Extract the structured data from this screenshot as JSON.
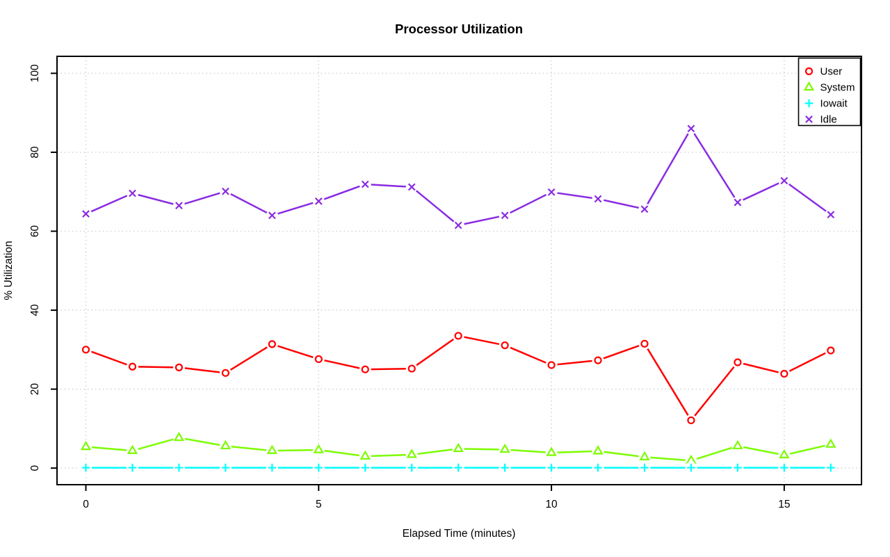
{
  "chart_data": {
    "type": "line",
    "title": "Processor Utilization",
    "xlabel": "Elapsed Time (minutes)",
    "ylabel": "% Utilization",
    "x": [
      0,
      1,
      2,
      3,
      4,
      5,
      6,
      7,
      8,
      9,
      10,
      11,
      12,
      13,
      14,
      15,
      16
    ],
    "series": [
      {
        "name": "User",
        "color": "#ff0000",
        "marker": "circle",
        "values": [
          30.0,
          25.7,
          25.5,
          24.1,
          31.4,
          27.6,
          25.0,
          25.2,
          33.5,
          31.1,
          26.1,
          27.3,
          31.5,
          12.1,
          26.8,
          23.9,
          29.8
        ]
      },
      {
        "name": "System",
        "color": "#7cfc00",
        "marker": "triangle",
        "values": [
          5.4,
          4.4,
          7.7,
          5.6,
          4.4,
          4.6,
          3.0,
          3.4,
          4.9,
          4.7,
          3.9,
          4.3,
          2.8,
          1.9,
          5.6,
          3.3,
          6.0
        ]
      },
      {
        "name": "Iowait",
        "color": "#00ffff",
        "marker": "plus",
        "values": [
          0.1,
          0.1,
          0.1,
          0.1,
          0.1,
          0.1,
          0.1,
          0.1,
          0.1,
          0.1,
          0.1,
          0.1,
          0.1,
          0.1,
          0.1,
          0.1,
          0.1
        ]
      },
      {
        "name": "Idle",
        "color": "#8a2be2",
        "marker": "x",
        "values": [
          64.4,
          69.6,
          66.5,
          70.1,
          64.0,
          67.6,
          71.9,
          71.2,
          61.5,
          64.0,
          69.9,
          68.2,
          65.6,
          86.0,
          67.3,
          72.8,
          64.2
        ]
      }
    ],
    "xticks": [
      0,
      5,
      10,
      15
    ],
    "yticks": [
      0,
      20,
      40,
      60,
      80,
      100
    ],
    "xlim": [
      -0.62,
      16.66
    ],
    "ylim": [
      -4.2,
      104.3
    ],
    "grid": "dotted",
    "grid_color": "#d3d3d3",
    "box_color": "#000000",
    "background": "#ffffff",
    "legend_position": "top-right",
    "legend": [
      "User",
      "System",
      "Iowait",
      "Idle"
    ]
  }
}
